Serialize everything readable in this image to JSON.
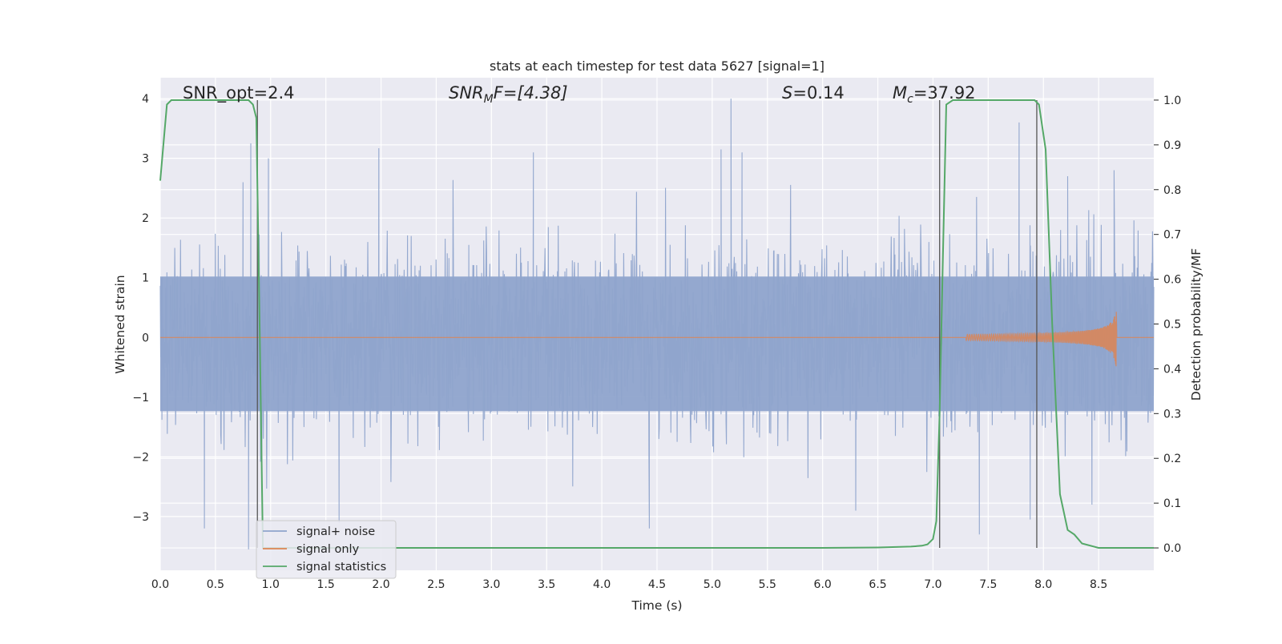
{
  "chart_data": {
    "type": "line",
    "title": "stats at each timestep for test data 5627 [signal=1]",
    "xlabel": "Time (s)",
    "ylabel_left": "Whitened strain",
    "ylabel_right": "Detection probability/MF",
    "xlim": [
      0,
      9.0
    ],
    "ylim_left": [
      -3.9,
      4.35
    ],
    "ylim_right": [
      -0.05,
      1.05
    ],
    "x_ticks": [
      0.0,
      0.5,
      1.0,
      1.5,
      2.0,
      2.5,
      3.0,
      3.5,
      4.0,
      4.5,
      5.0,
      5.5,
      6.0,
      6.5,
      7.0,
      7.5,
      8.0,
      8.5
    ],
    "x_tick_labels": [
      "0.0",
      "0.5",
      "1.0",
      "1.5",
      "2.0",
      "2.5",
      "3.0",
      "3.5",
      "4.0",
      "4.5",
      "5.0",
      "5.5",
      "6.0",
      "6.5",
      "7.0",
      "7.5",
      "8.0",
      "8.5"
    ],
    "y_ticks_left": [
      -3,
      -2,
      -1,
      0,
      1,
      2,
      3,
      4
    ],
    "y_tick_labels_left": [
      "−3",
      "−2",
      "−1",
      "0",
      "1",
      "2",
      "3",
      "4"
    ],
    "y_ticks_right": [
      0.0,
      0.1,
      0.2,
      0.3,
      0.4,
      0.5,
      0.6,
      0.7,
      0.8,
      0.9,
      1.0
    ],
    "y_tick_labels_right": [
      "0.0",
      "0.1",
      "0.2",
      "0.3",
      "0.4",
      "0.5",
      "0.6",
      "0.7",
      "0.8",
      "0.9",
      "1.0"
    ],
    "grid": true,
    "legend_placement": "lower-left",
    "annotations": {
      "snr_opt": "SNR_opt=2.4",
      "snr_mf_base": "SNR",
      "snr_mf_sub": "M",
      "snr_mf_rest": "F=[4.38]",
      "s_base": "S",
      "s_rest": "=0.14",
      "mc_base": "M",
      "mc_sub": "c",
      "mc_rest": "=37.92"
    },
    "vertical_lines_x": [
      0.88,
      7.06,
      7.94
    ],
    "noise": {
      "name": "signal+ noise",
      "color": "#8fa4cc",
      "seed": 5627,
      "typical_max": 1.7,
      "typical_min": -1.3,
      "peaks": [
        {
          "x": 0.75,
          "y": 2.6
        },
        {
          "x": 0.82,
          "y": 3.25
        },
        {
          "x": 0.98,
          "y": 3.0
        },
        {
          "x": 1.98,
          "y": 3.17
        },
        {
          "x": 3.38,
          "y": 3.1
        },
        {
          "x": 5.08,
          "y": 3.15
        },
        {
          "x": 5.17,
          "y": 4.0
        },
        {
          "x": 5.27,
          "y": 3.1
        },
        {
          "x": 7.78,
          "y": 3.6
        },
        {
          "x": 8.22,
          "y": 2.7
        },
        {
          "x": 8.64,
          "y": 2.8
        },
        {
          "x": 0.4,
          "y": -3.2
        },
        {
          "x": 0.8,
          "y": -3.55
        },
        {
          "x": 1.62,
          "y": -3.1
        },
        {
          "x": 4.43,
          "y": -3.2
        },
        {
          "x": 6.3,
          "y": -2.9
        },
        {
          "x": 7.42,
          "y": -3.3
        },
        {
          "x": 8.44,
          "y": -2.8
        },
        {
          "x": 7.88,
          "y": -3.05
        }
      ]
    },
    "signal_only": {
      "name": "signal only",
      "color": "#dd8452",
      "start": 7.3,
      "end": 8.66,
      "peak_amplitude": 0.52
    },
    "statistics": {
      "name": "signal statistics",
      "color": "#55a868",
      "x": [
        0.0,
        0.06,
        0.1,
        0.15,
        0.2,
        0.3,
        0.5,
        0.7,
        0.8,
        0.84,
        0.87,
        0.9,
        0.93,
        1.0,
        2.0,
        3.0,
        4.0,
        5.0,
        6.0,
        6.5,
        6.8,
        6.9,
        6.95,
        7.0,
        7.03,
        7.06,
        7.09,
        7.12,
        7.18,
        7.5,
        7.7,
        7.92,
        7.96,
        8.02,
        8.08,
        8.15,
        8.22,
        8.28,
        8.35,
        8.5,
        8.7,
        8.9,
        9.0
      ],
      "y": [
        0.82,
        0.99,
        1.0,
        1.0,
        1.0,
        1.0,
        1.0,
        1.0,
        1.0,
        0.99,
        0.96,
        0.5,
        0.0,
        0.0,
        0.0,
        0.0,
        0.0,
        0.0,
        0.0,
        0.001,
        0.003,
        0.005,
        0.008,
        0.02,
        0.06,
        0.3,
        0.65,
        0.99,
        1.0,
        1.0,
        1.0,
        1.0,
        0.99,
        0.89,
        0.5,
        0.12,
        0.04,
        0.03,
        0.01,
        0.0,
        0.0,
        0.0,
        0.0
      ]
    }
  }
}
